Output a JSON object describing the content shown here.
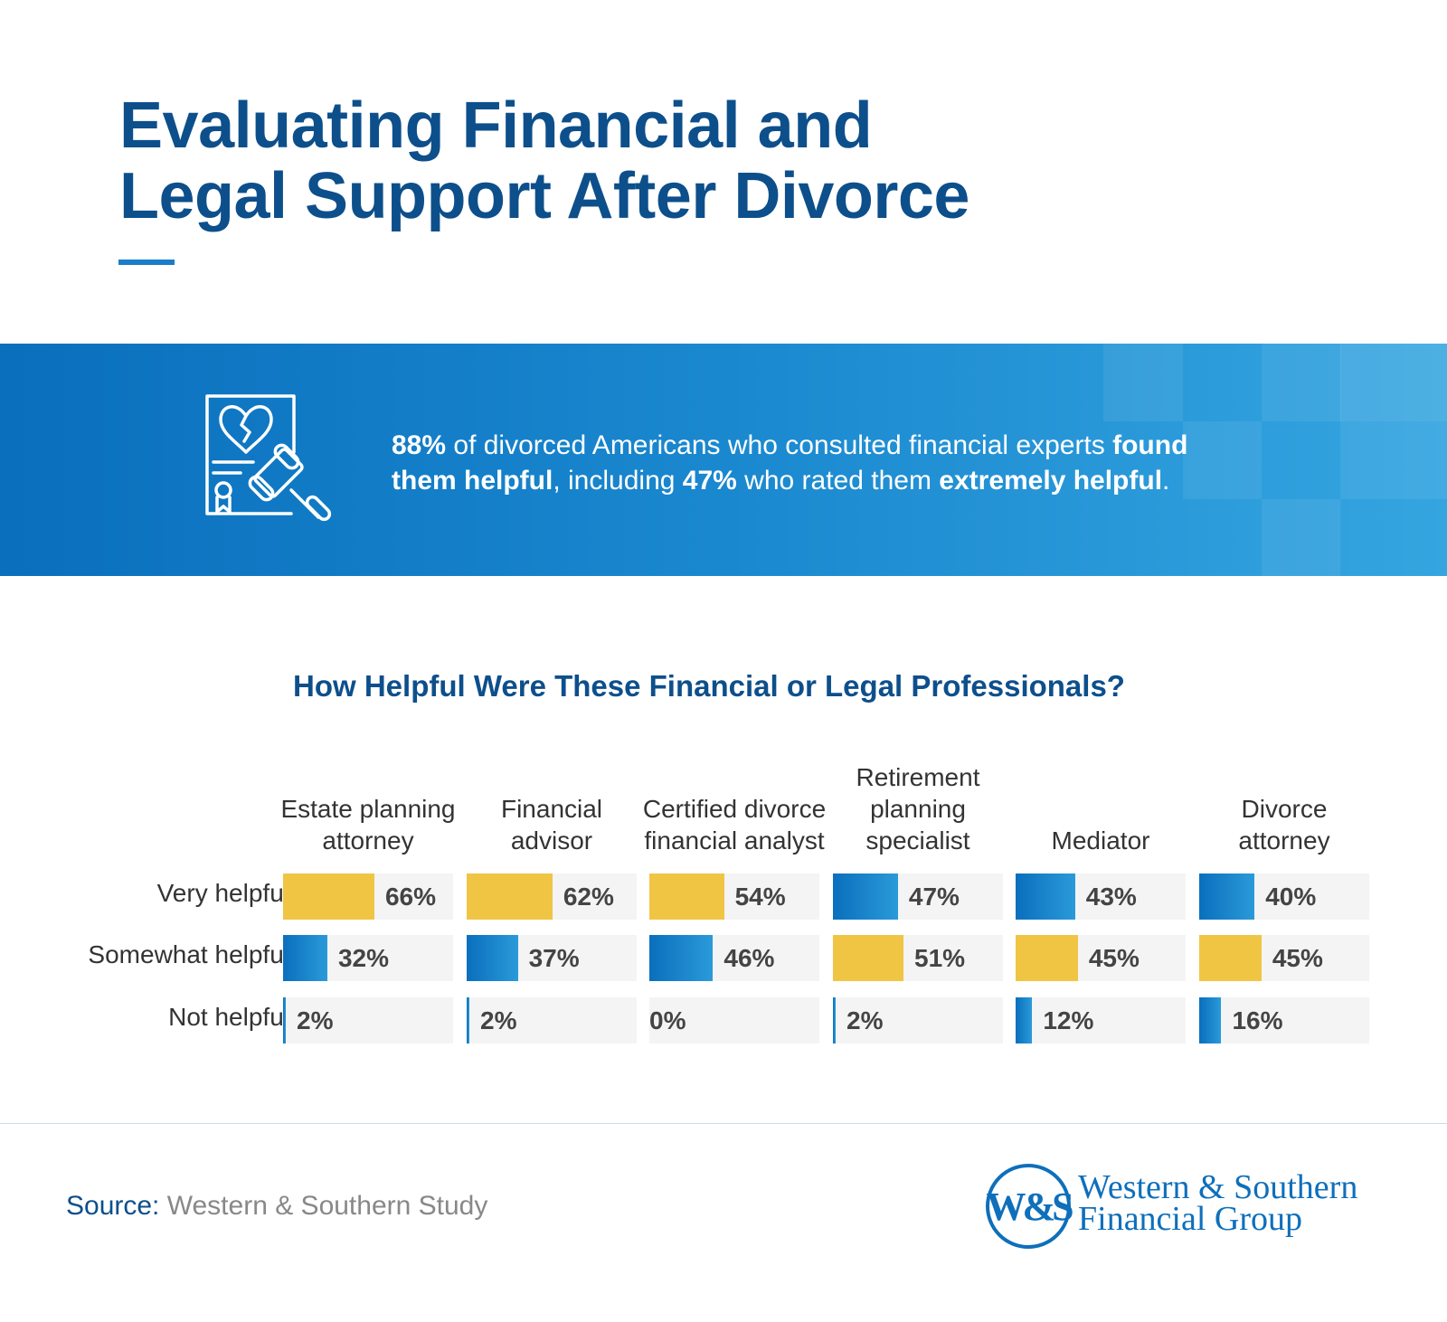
{
  "header": {
    "title_line1": "Evaluating Financial and",
    "title_line2": "Legal Support After Divorce"
  },
  "banner": {
    "icon": "document-broken-heart-gavel-icon",
    "text_parts": [
      {
        "text": "88%",
        "bold": true
      },
      {
        "text": " of divorced Americans who consulted financial experts ",
        "bold": false
      },
      {
        "text": "found them helpful",
        "bold": true
      },
      {
        "text": ", including ",
        "bold": false
      },
      {
        "text": "47%",
        "bold": true
      },
      {
        "text": " who rated them ",
        "bold": false
      },
      {
        "text": "extremely helpful",
        "bold": true
      },
      {
        "text": ".",
        "bold": false
      }
    ]
  },
  "chart_data": {
    "type": "bar",
    "title": "How Helpful Were These Financial or Legal Professionals?",
    "categories": [
      "Estate planning attorney",
      "Financial advisor",
      "Certified divorce financial analyst",
      "Retirement planning specialist",
      "Mediator",
      "Divorce attorney"
    ],
    "category_lines": [
      [
        "Estate planning",
        "attorney"
      ],
      [
        "Financial",
        "advisor"
      ],
      [
        "Certified divorce",
        "financial analyst"
      ],
      [
        "Retirement",
        "planning",
        "specialist"
      ],
      [
        "Mediator"
      ],
      [
        "Divorce",
        "attorney"
      ]
    ],
    "series": [
      {
        "name": "Very helpful",
        "values": [
          66,
          62,
          54,
          47,
          43,
          40
        ]
      },
      {
        "name": "Somewhat helpful",
        "values": [
          32,
          37,
          46,
          51,
          45,
          45
        ]
      },
      {
        "name": "Not helpful",
        "values": [
          2,
          2,
          0,
          2,
          12,
          16
        ]
      }
    ],
    "unit": "%",
    "highlight_rule": "largest value per category shown in yellow",
    "colors": {
      "highlight": "#f0c544",
      "blue_start": "#0a6fbd",
      "blue_end": "#2a9ad9",
      "track": "#f4f4f4"
    }
  },
  "footer": {
    "source_label": "Source:",
    "source_text": " Western & Southern Study",
    "logo_monogram": "W&S",
    "logo_line1": "Western & Southern",
    "logo_line2": "Financial Group"
  },
  "colors": {
    "title": "#0d4f8b",
    "accent": "#1a7dc9"
  }
}
